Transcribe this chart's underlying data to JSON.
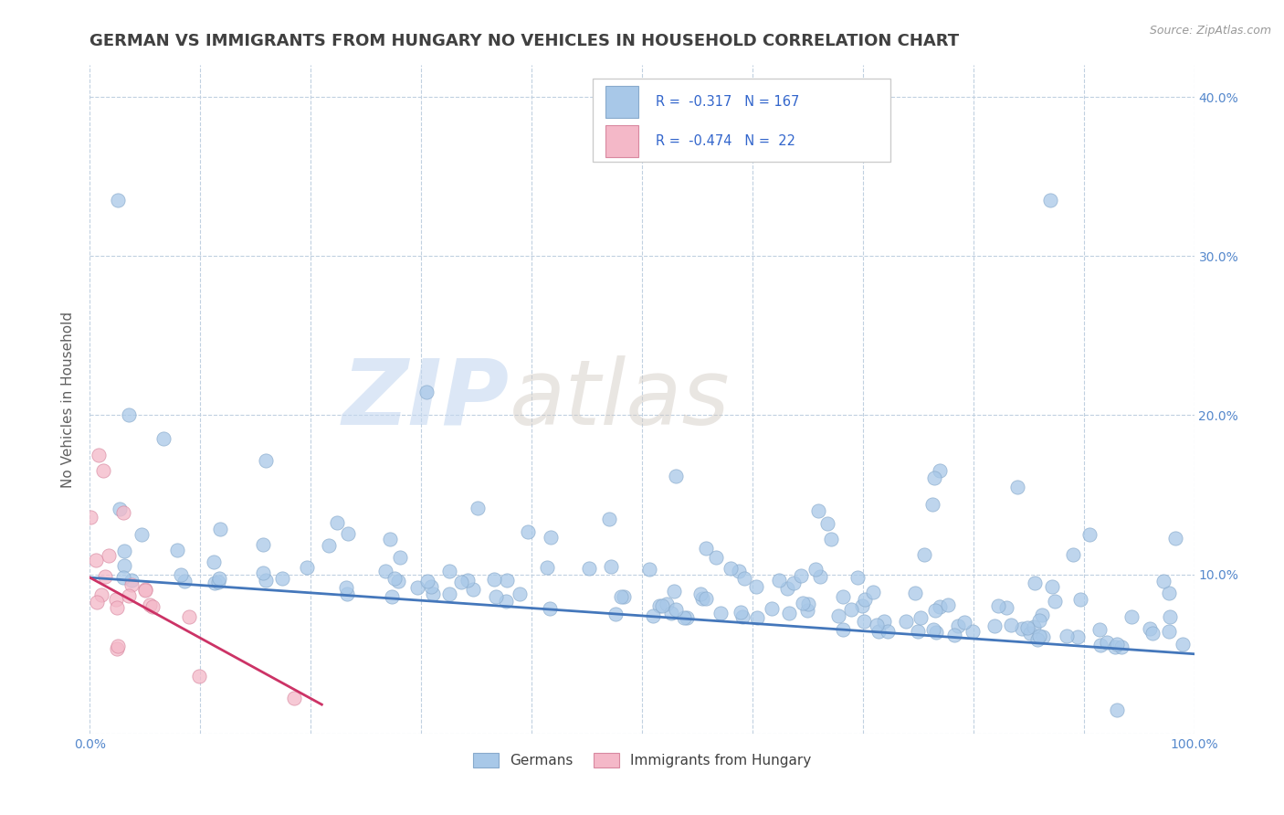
{
  "title": "GERMAN VS IMMIGRANTS FROM HUNGARY NO VEHICLES IN HOUSEHOLD CORRELATION CHART",
  "source": "Source: ZipAtlas.com",
  "ylabel": "No Vehicles in Household",
  "xlim": [
    0.0,
    1.0
  ],
  "ylim": [
    0.0,
    0.42
  ],
  "x_ticks": [
    0.0,
    0.1,
    0.2,
    0.3,
    0.4,
    0.5,
    0.6,
    0.7,
    0.8,
    0.9,
    1.0
  ],
  "x_tick_labels": [
    "0.0%",
    "",
    "",
    "",
    "",
    "",
    "",
    "",
    "",
    "",
    "100.0%"
  ],
  "y_ticks": [
    0.0,
    0.1,
    0.2,
    0.3,
    0.4
  ],
  "y_tick_labels_right": [
    "",
    "10.0%",
    "20.0%",
    "30.0%",
    "40.0%"
  ],
  "german_color": "#a8c8e8",
  "hungary_color": "#f4b8c8",
  "german_edge": "#88aacc",
  "hungary_edge": "#d888a0",
  "trendline_german_color": "#4477bb",
  "trendline_hungary_color": "#cc3366",
  "r_german": -0.317,
  "n_german": 167,
  "r_hungary": -0.474,
  "n_hungary": 22,
  "watermark_zip": "ZIP",
  "watermark_atlas": "atlas",
  "background_color": "#ffffff",
  "plot_bg_color": "#ffffff",
  "legend_label_german": "Germans",
  "legend_label_hungary": "Immigrants from Hungary",
  "title_color": "#404040",
  "title_fontsize": 13,
  "axis_label_color": "#606060",
  "tick_color": "#5588cc",
  "grid_color": "#c0d0e0",
  "grid_style": "--",
  "seed": 99,
  "german_slope": -0.048,
  "german_intercept": 0.098,
  "hungary_slope": -0.38,
  "hungary_intercept": 0.098
}
